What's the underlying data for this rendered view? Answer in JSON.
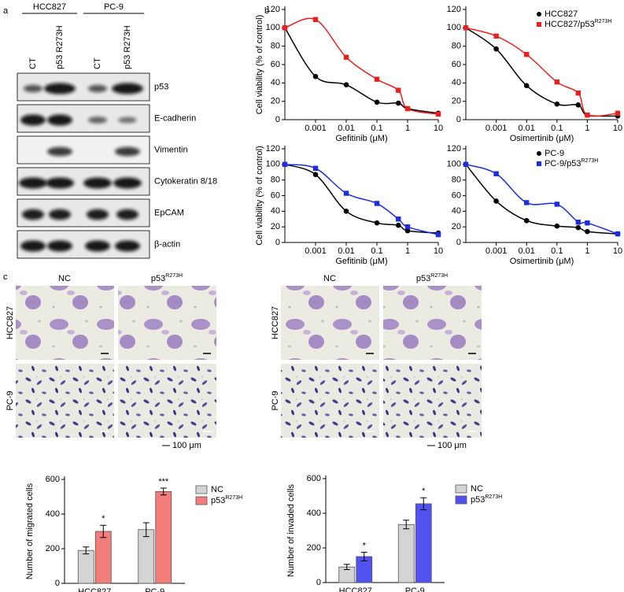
{
  "panel_labels": [
    "a",
    "b",
    "c"
  ],
  "blot": {
    "cell_lines": [
      "HCC827",
      "PC-9"
    ],
    "lanes": [
      "CT",
      "p53 R273H",
      "CT",
      "p53 R273H"
    ],
    "proteins": [
      "p53",
      "E-cadherin",
      "Vimentin",
      "Cytokeratin 8/18",
      "EpCAM",
      "β-actin"
    ]
  },
  "micrographs": [
    {
      "columns": [
        {
          "text": "NC"
        },
        {
          "text": "p53",
          "sup": "R273H"
        }
      ],
      "rows": [
        "HCC827",
        "PC-9"
      ],
      "scale_bar": "100 μm"
    },
    {
      "columns": [
        {
          "text": "NC"
        },
        {
          "text": "p53",
          "sup": "R273H"
        }
      ],
      "rows": [
        "HCC827",
        "PC-9"
      ],
      "scale_bar": "100 μm"
    }
  ],
  "chart_data": [
    {
      "type": "line",
      "xscale": "log",
      "ylabel": "Cell viability (% of control)",
      "xlabel": "Gefitinib (μM)",
      "x": [
        0.0001,
        0.001,
        0.01,
        0.1,
        0.5,
        1,
        10
      ],
      "xlim": [
        0.0001,
        10
      ],
      "xticks": [
        0.001,
        0.01,
        0.1,
        1,
        10
      ],
      "ylim": [
        0,
        120
      ],
      "yticks": [
        0,
        20,
        40,
        60,
        80,
        100,
        120
      ],
      "series": [
        {
          "color": "#000000",
          "marker": "circle",
          "values": [
            100,
            47,
            38,
            19,
            18,
            12,
            7
          ]
        },
        {
          "color": "#e8201e",
          "marker": "square",
          "values": [
            100,
            109,
            68,
            44,
            32,
            12,
            6
          ]
        }
      ]
    },
    {
      "type": "line",
      "xscale": "log",
      "xlabel": "Osimertinib (μM)",
      "legend": "upper right",
      "x": [
        0.0001,
        0.001,
        0.01,
        0.1,
        0.5,
        1,
        10
      ],
      "xlim": [
        0.0001,
        10
      ],
      "xticks": [
        0.001,
        0.01,
        0.1,
        1,
        10
      ],
      "ylim": [
        0,
        120
      ],
      "yticks": [
        0,
        20,
        40,
        60,
        80,
        100,
        120
      ],
      "series": [
        {
          "name": "HCC827",
          "color": "#000000",
          "marker": "circle",
          "values": [
            100,
            77,
            37,
            17,
            16,
            5,
            4
          ]
        },
        {
          "name": "HCC827/p53",
          "name_sup": "R273H",
          "color": "#e8201e",
          "marker": "square",
          "values": [
            100,
            91,
            71,
            41,
            29,
            5,
            7
          ]
        }
      ]
    },
    {
      "type": "line",
      "xscale": "log",
      "ylabel": "Cell viability (% of control)",
      "xlabel": "Gefitinib (μM)",
      "x": [
        0.0001,
        0.001,
        0.01,
        0.1,
        0.5,
        1,
        10
      ],
      "xlim": [
        0.0001,
        10
      ],
      "xticks": [
        0.001,
        0.01,
        0.1,
        1,
        10
      ],
      "ylim": [
        0,
        120
      ],
      "yticks": [
        0,
        20,
        40,
        60,
        80,
        100,
        120
      ],
      "series": [
        {
          "color": "#000000",
          "marker": "circle",
          "values": [
            100,
            87,
            40,
            25,
            22,
            15,
            12
          ]
        },
        {
          "color": "#1c2de0",
          "marker": "square",
          "values": [
            100,
            95,
            63,
            50,
            30,
            20,
            10
          ]
        }
      ]
    },
    {
      "type": "line",
      "xscale": "log",
      "xlabel": "Osimertinib (μM)",
      "legend": "upper right",
      "x": [
        0.0001,
        0.001,
        0.01,
        0.1,
        0.5,
        1,
        10
      ],
      "xlim": [
        0.0001,
        10
      ],
      "xticks": [
        0.001,
        0.01,
        0.1,
        1,
        10
      ],
      "ylim": [
        0,
        120
      ],
      "yticks": [
        0,
        20,
        40,
        60,
        80,
        100,
        120
      ],
      "series": [
        {
          "name": "PC-9",
          "color": "#000000",
          "marker": "circle",
          "values": [
            100,
            53,
            28,
            21,
            19,
            14,
            11
          ]
        },
        {
          "name": "PC-9/p53",
          "name_sup": "R273H",
          "color": "#1c2de0",
          "marker": "square",
          "values": [
            100,
            88,
            51,
            49,
            26,
            25,
            11
          ]
        }
      ]
    },
    {
      "type": "bar",
      "ylabel": "Number of migrated cells",
      "categories": [
        "HCC827",
        "PC-9"
      ],
      "legend": "right",
      "ylim": [
        0,
        600
      ],
      "yticks": [
        0,
        200,
        400,
        600
      ],
      "series": [
        {
          "name": "NC",
          "color": "#d4d4d4",
          "values": [
            190,
            310
          ],
          "errors": [
            20,
            40
          ]
        },
        {
          "name": "p53",
          "name_sup": "R273H",
          "color": "#f27d7a",
          "values": [
            300,
            530
          ],
          "errors": [
            35,
            20
          ],
          "annotations": [
            "*",
            "***"
          ]
        }
      ]
    },
    {
      "type": "bar",
      "ylabel": "Number of invaded cells",
      "categories": [
        "HCC827",
        "PC-9"
      ],
      "legend": "right",
      "ylim": [
        0,
        600
      ],
      "yticks": [
        0,
        200,
        400,
        600
      ],
      "series": [
        {
          "name": "NC",
          "color": "#d4d4d4",
          "values": [
            90,
            335
          ],
          "errors": [
            15,
            25
          ]
        },
        {
          "name": "p53",
          "name_sup": "R273H",
          "color": "#5252f0",
          "values": [
            150,
            455
          ],
          "errors": [
            25,
            35
          ],
          "annotations": [
            "*",
            "*"
          ]
        }
      ]
    }
  ]
}
